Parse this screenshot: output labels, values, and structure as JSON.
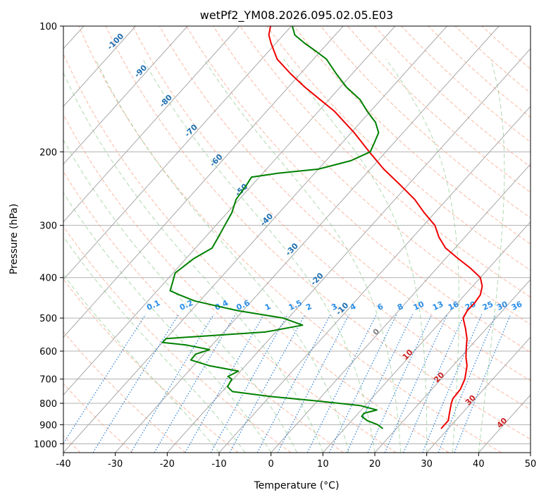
{
  "chart_data": {
    "type": "line",
    "title": "wetPf2_YM08.2026.095.02.05.E03",
    "xlabel": "Temperature (°C)",
    "ylabel": "Pressure (hPa)",
    "xlim": [
      -40,
      50
    ],
    "ylim": [
      1050,
      100
    ],
    "y_scale": "log",
    "skew": "skew-T log-P diagram",
    "x_ticks": [
      -40,
      -30,
      -20,
      -10,
      0,
      10,
      20,
      30,
      40,
      50
    ],
    "y_ticks": [
      1000,
      900,
      800,
      700,
      600,
      500,
      400,
      300,
      200,
      100
    ],
    "grid": true,
    "series": [
      {
        "name": "temperature",
        "color": "#ee0000",
        "points": [
          {
            "p": 920,
            "t": 28.6
          },
          {
            "p": 880,
            "t": 28.6
          },
          {
            "p": 850,
            "t": 27.7
          },
          {
            "p": 800,
            "t": 26.2
          },
          {
            "p": 780,
            "t": 25.7
          },
          {
            "p": 740,
            "t": 25.5
          },
          {
            "p": 700,
            "t": 24.6
          },
          {
            "p": 650,
            "t": 22.7
          },
          {
            "p": 620,
            "t": 21.0
          },
          {
            "p": 590,
            "t": 19.5
          },
          {
            "p": 560,
            "t": 18.0
          },
          {
            "p": 530,
            "t": 16.0
          },
          {
            "p": 500,
            "t": 13.7
          },
          {
            "p": 480,
            "t": 13.2
          },
          {
            "p": 460,
            "t": 13.3
          },
          {
            "p": 440,
            "t": 13.0
          },
          {
            "p": 420,
            "t": 11.9
          },
          {
            "p": 400,
            "t": 10.0
          },
          {
            "p": 380,
            "t": 6.5
          },
          {
            "p": 360,
            "t": 2.4
          },
          {
            "p": 340,
            "t": -1.8
          },
          {
            "p": 320,
            "t": -5.0
          },
          {
            "p": 300,
            "t": -7.8
          },
          {
            "p": 280,
            "t": -12.0
          },
          {
            "p": 260,
            "t": -16.2
          },
          {
            "p": 240,
            "t": -21.5
          },
          {
            "p": 220,
            "t": -27.4
          },
          {
            "p": 200,
            "t": -33.2
          },
          {
            "p": 180,
            "t": -39.4
          },
          {
            "p": 160,
            "t": -46.9
          },
          {
            "p": 150,
            "t": -51.7
          },
          {
            "p": 140,
            "t": -56.8
          },
          {
            "p": 130,
            "t": -61.9
          },
          {
            "p": 120,
            "t": -67.0
          },
          {
            "p": 110,
            "t": -70.9
          },
          {
            "p": 105,
            "t": -72.8
          },
          {
            "p": 100,
            "t": -74.0
          }
        ]
      },
      {
        "name": "dewpoint",
        "color": "#008000",
        "points": [
          {
            "p": 920,
            "t": 17.4
          },
          {
            "p": 900,
            "t": 15.7
          },
          {
            "p": 880,
            "t": 13.0
          },
          {
            "p": 860,
            "t": 11.2
          },
          {
            "p": 845,
            "t": 11.1
          },
          {
            "p": 830,
            "t": 13.0
          },
          {
            "p": 810,
            "t": 9.0
          },
          {
            "p": 790,
            "t": 0.0
          },
          {
            "p": 770,
            "t": -10.0
          },
          {
            "p": 750,
            "t": -18.0
          },
          {
            "p": 730,
            "t": -19.8
          },
          {
            "p": 700,
            "t": -20.3
          },
          {
            "p": 690,
            "t": -21.5
          },
          {
            "p": 670,
            "t": -20.4
          },
          {
            "p": 650,
            "t": -27.0
          },
          {
            "p": 630,
            "t": -31.5
          },
          {
            "p": 610,
            "t": -31.6
          },
          {
            "p": 595,
            "t": -29.7
          },
          {
            "p": 580,
            "t": -35.0
          },
          {
            "p": 572,
            "t": -40.0
          },
          {
            "p": 570,
            "t": -40.0
          },
          {
            "p": 560,
            "t": -40.0
          },
          {
            "p": 552,
            "t": -33.0
          },
          {
            "p": 540,
            "t": -22.0
          },
          {
            "p": 520,
            "t": -16.0
          },
          {
            "p": 500,
            "t": -21.0
          },
          {
            "p": 480,
            "t": -31.0
          },
          {
            "p": 470,
            "t": -35.0
          },
          {
            "p": 455,
            "t": -41.0
          },
          {
            "p": 440,
            "t": -45.0
          },
          {
            "p": 430,
            "t": -47.5
          },
          {
            "p": 410,
            "t": -48.5
          },
          {
            "p": 390,
            "t": -49.6
          },
          {
            "p": 360,
            "t": -48.5
          },
          {
            "p": 340,
            "t": -46.8
          },
          {
            "p": 320,
            "t": -47.5
          },
          {
            "p": 300,
            "t": -48.3
          },
          {
            "p": 280,
            "t": -49.1
          },
          {
            "p": 260,
            "t": -50.6
          },
          {
            "p": 240,
            "t": -51.1
          },
          {
            "p": 230,
            "t": -51.5
          },
          {
            "p": 225,
            "t": -47.0
          },
          {
            "p": 220,
            "t": -40.0
          },
          {
            "p": 210,
            "t": -35.2
          },
          {
            "p": 200,
            "t": -33.0
          },
          {
            "p": 190,
            "t": -33.8
          },
          {
            "p": 180,
            "t": -34.7
          },
          {
            "p": 170,
            "t": -37.1
          },
          {
            "p": 160,
            "t": -40.6
          },
          {
            "p": 150,
            "t": -44.0
          },
          {
            "p": 140,
            "t": -48.8
          },
          {
            "p": 130,
            "t": -53.1
          },
          {
            "p": 120,
            "t": -57.5
          },
          {
            "p": 115,
            "t": -60.8
          },
          {
            "p": 110,
            "t": -64.4
          },
          {
            "p": 105,
            "t": -67.8
          },
          {
            "p": 100,
            "t": -69.8
          }
        ]
      }
    ],
    "dry_adiabats": [
      -40,
      -30,
      -20,
      -10,
      0,
      10,
      20,
      30,
      40,
      50,
      60,
      70,
      80,
      90,
      100,
      110,
      120,
      130,
      140,
      150,
      160,
      170,
      180,
      190
    ],
    "moist_adiabats": [
      -10,
      -5,
      0,
      5,
      10,
      15,
      20,
      25,
      30,
      35,
      40
    ],
    "mixing_ratio_labels": [
      "0.1",
      "0.2",
      "0.4",
      "0.6",
      "1",
      "1.5",
      "2",
      "3",
      "4",
      "6",
      "8",
      "10",
      "13",
      "16",
      "20",
      "25",
      "30",
      "36"
    ],
    "isotherm_labels_upper": [
      "-100",
      "-90",
      "-80",
      "-70",
      "-60",
      "-50",
      "-40",
      "-30",
      "-20",
      "-10"
    ],
    "isotherm_labels_lower": [
      "0",
      "10",
      "20",
      "30",
      "40"
    ]
  }
}
